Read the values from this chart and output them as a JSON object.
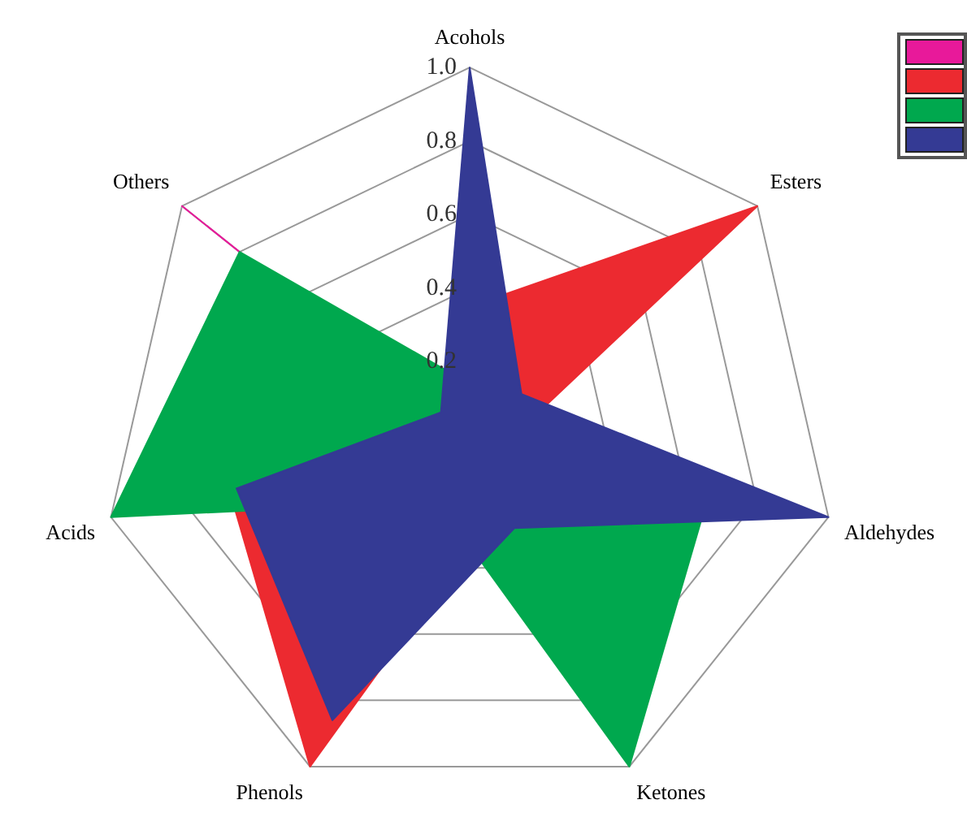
{
  "chart_data": {
    "type": "radar",
    "categories": [
      "Acohols",
      "Esters",
      "Aldehydes",
      "Ketones",
      "Phenols",
      "Acids",
      "Others"
    ],
    "series": [
      {
        "color": "#e8199a",
        "values": [
          0,
          0,
          0,
          0,
          0,
          0,
          1.0
        ]
      },
      {
        "color": "#ec2a30",
        "values": [
          0.35,
          1.0,
          0.1,
          0.2,
          1.0,
          0.67,
          0.1
        ]
      },
      {
        "color": "#00a84e",
        "values": [
          0.14,
          0.15,
          0.67,
          1.0,
          0.2,
          1.0,
          0.8
        ]
      },
      {
        "color": "#343a94",
        "values": [
          1.0,
          0.18,
          1.0,
          0.28,
          0.86,
          0.65,
          0.1
        ]
      }
    ],
    "ylim": [
      0,
      1.0
    ],
    "yticks": [
      0.2,
      0.4,
      0.6,
      0.8,
      {
        "value": 1,
        "label": "1.0"
      }
    ]
  }
}
